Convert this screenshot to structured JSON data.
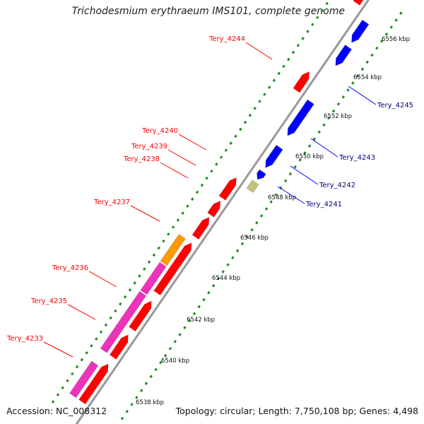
{
  "title": "Trichodesmium erythraeum IMS101, complete genome",
  "footer": {
    "accession": "Accession: NC_008312",
    "topology": "Topology: circular; Length: 7,750,108 bp; Genes: 4,498"
  },
  "colors": {
    "forward_gene": "#ff0000",
    "reverse_gene": "#0000ff",
    "pink_track": "#ee33bb",
    "orange_track": "#ff9900",
    "khaki_gene": "#c8c080",
    "backbone": "#aaaaaa",
    "tick_dots": "#228822"
  },
  "scale": {
    "unit": "kbp",
    "ticks": [
      {
        "label": "6538 kbp"
      },
      {
        "label": "6540 kbp"
      },
      {
        "label": "6542 kbp"
      },
      {
        "label": "6544 kbp"
      },
      {
        "label": "6546 kbp"
      },
      {
        "label": "6548 kbp"
      },
      {
        "label": "6550 kbp"
      },
      {
        "label": "6552 kbp"
      },
      {
        "label": "6554 kbp"
      },
      {
        "label": "6556 kbp"
      }
    ]
  },
  "genes": {
    "left": [
      {
        "label": "Tery_4233"
      },
      {
        "label": "Tery_4235"
      },
      {
        "label": "Tery_4236"
      },
      {
        "label": "Tery_4237"
      },
      {
        "label": "Tery_4238"
      },
      {
        "label": "Tery_4239"
      },
      {
        "label": "Tery_4240"
      },
      {
        "label": "Tery_4244"
      }
    ],
    "right": [
      {
        "label": "Tery_4241"
      },
      {
        "label": "Tery_4242"
      },
      {
        "label": "Tery_4243"
      },
      {
        "label": "Tery_4245"
      }
    ]
  }
}
